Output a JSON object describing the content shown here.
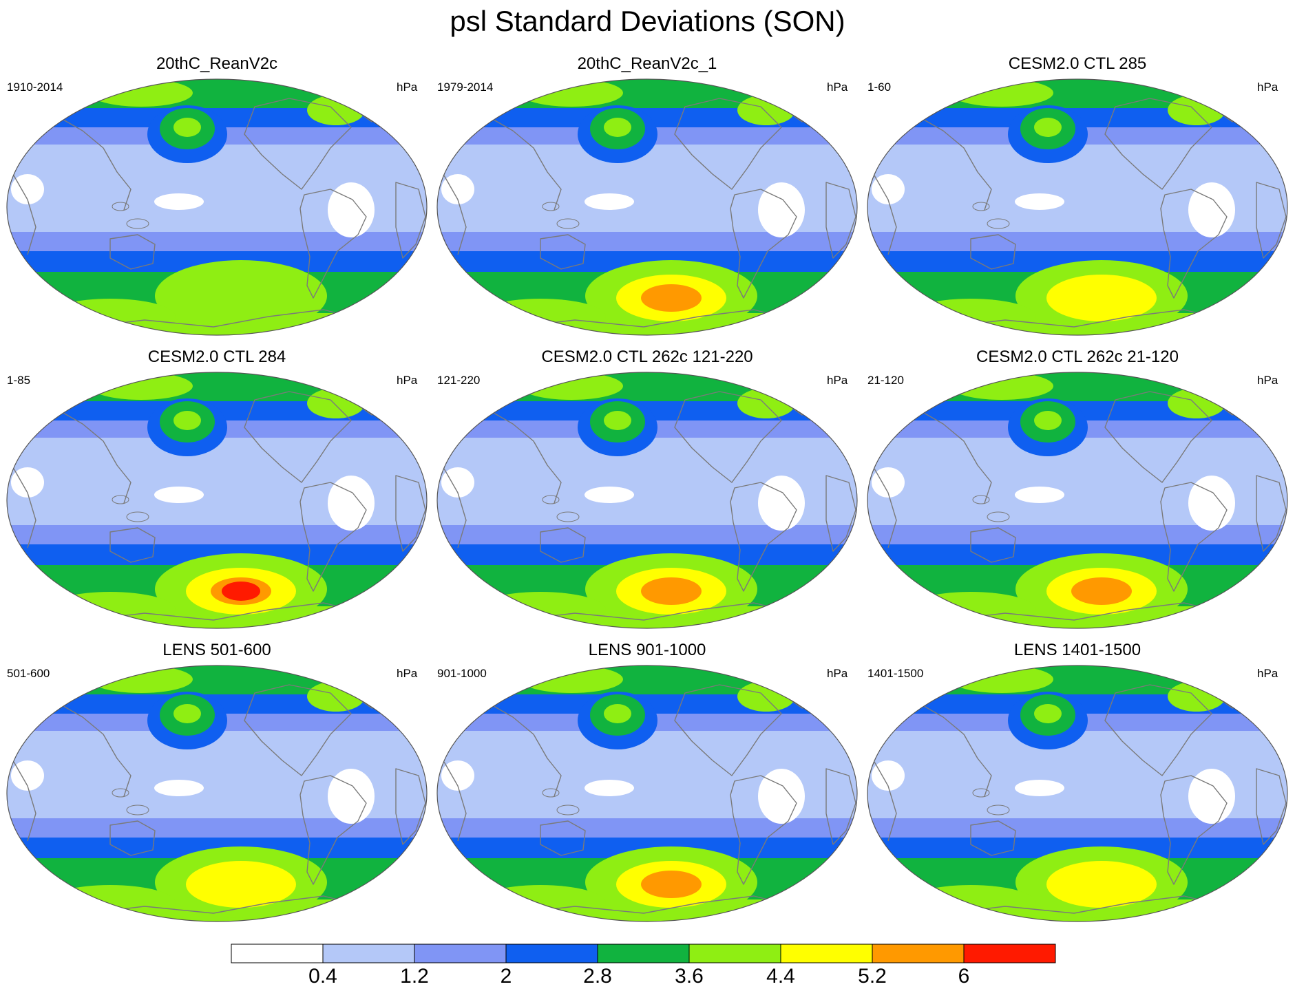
{
  "title": "psl Standard Deviations (SON)",
  "units": "hPa",
  "colorbar": {
    "levels": [
      "0.4",
      "1.2",
      "2",
      "2.8",
      "3.6",
      "4.4",
      "5.2",
      "6"
    ],
    "colors": [
      "#ffffff",
      "#b4c8f8",
      "#8095f5",
      "#0f5ff0",
      "#11b33f",
      "#8fee13",
      "#ffff00",
      "#ff9900",
      "#ff1a00"
    ]
  },
  "panels": [
    {
      "title": "20thC_ReanV2c",
      "period": "1910-2014",
      "peak": 3
    },
    {
      "title": "20thC_ReanV2c_1",
      "period": "1979-2014",
      "peak": 5
    },
    {
      "title": "CESM2.0 CTL 285",
      "period": "1-60",
      "peak": 4
    },
    {
      "title": "CESM2.0 CTL 284",
      "period": "1-85",
      "peak": 6
    },
    {
      "title": "CESM2.0 CTL 262c 121-220",
      "period": "121-220",
      "peak": 5
    },
    {
      "title": "CESM2.0 CTL 262c 21-120",
      "period": "21-120",
      "peak": 5
    },
    {
      "title": "LENS 501-600",
      "period": "501-600",
      "peak": 4
    },
    {
      "title": "LENS 901-1000",
      "period": "901-1000",
      "peak": 5
    },
    {
      "title": "LENS 1401-1500",
      "period": "1401-1500",
      "peak": 4
    }
  ]
}
